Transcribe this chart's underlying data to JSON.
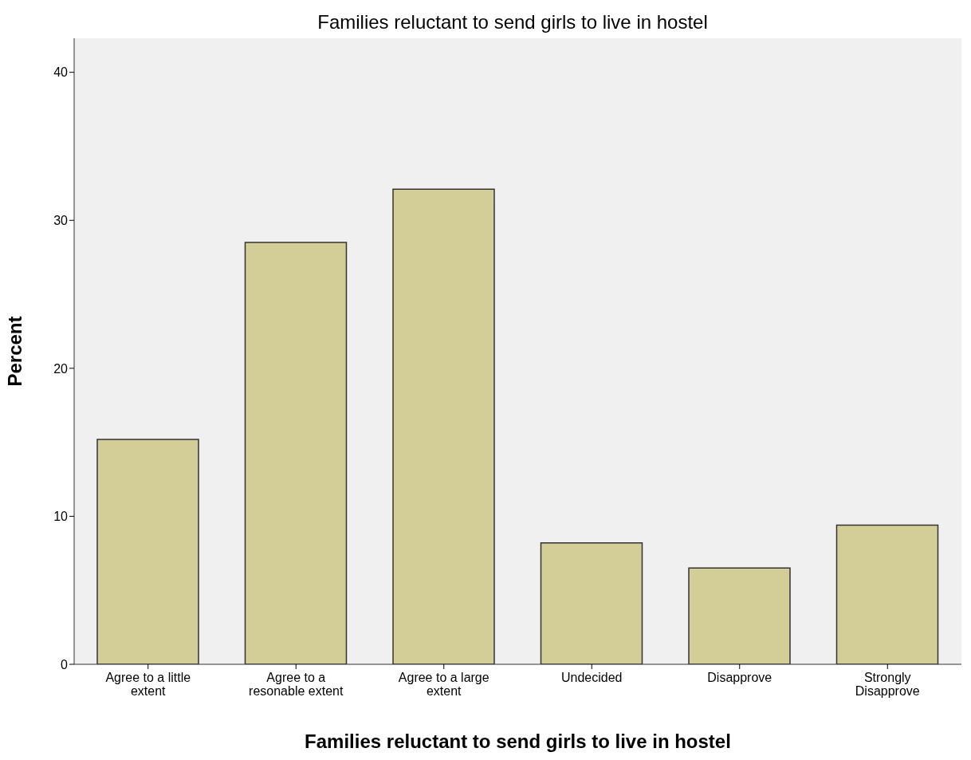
{
  "chart_data": {
    "type": "bar",
    "title": "Families reluctant to send girls to live in hostel",
    "xlabel": "Families reluctant to send girls to live in hostel",
    "ylabel": "Percent",
    "categories": [
      "Agree to a little extent",
      "Agree to a resonable extent",
      "Agree to a large extent",
      "Undecided",
      "Disapprove",
      "Strongly Disapprove"
    ],
    "values": [
      15.2,
      28.5,
      32.1,
      8.2,
      6.5,
      9.4
    ],
    "color": "#d3ce97",
    "ylim": [
      0,
      42.3
    ],
    "yticks": [
      0,
      10,
      20,
      30,
      40
    ],
    "grid": false
  }
}
